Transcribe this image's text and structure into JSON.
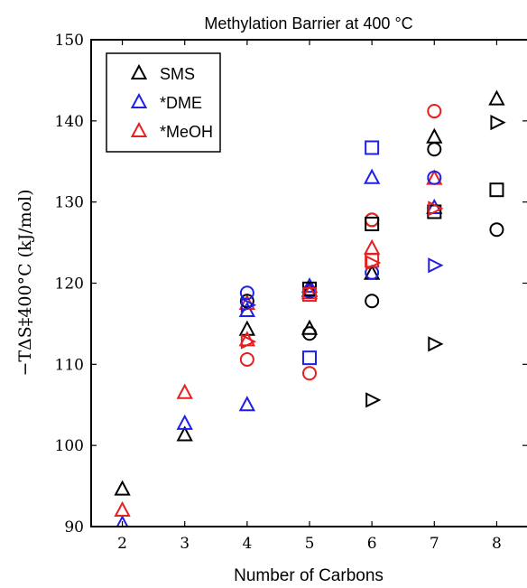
{
  "chart_data": {
    "type": "scatter",
    "title": "Methylation Barrier at 400 °C",
    "xlabel": "Number of Carbons",
    "ylabel": "−TΔS‡400°C (kJ/mol)",
    "xlim": [
      1.5,
      8.5
    ],
    "ylim": [
      90,
      150
    ],
    "xticks": [
      2,
      3,
      4,
      5,
      6,
      7,
      8
    ],
    "yticks": [
      90,
      100,
      110,
      120,
      130,
      140,
      150
    ],
    "grid": false,
    "legend_position": "top-left",
    "legend": [
      "SMS",
      "*DME",
      "*MeOH"
    ],
    "colors": {
      "SMS": "#000000",
      "*DME": "#1f1fe6",
      "*MeOH": "#e61f1f"
    },
    "series": [
      {
        "name": "SMS",
        "marker": "triangle-up",
        "points": [
          [
            2,
            94.6
          ],
          [
            3,
            101.3
          ],
          [
            4,
            114.3
          ],
          [
            5,
            114.4
          ],
          [
            5,
            119.1
          ],
          [
            6,
            121.2
          ],
          [
            7,
            138.0
          ],
          [
            8,
            142.7
          ]
        ]
      },
      {
        "name": "*DME",
        "marker": "triangle-up",
        "points": [
          [
            2,
            90.3
          ],
          [
            3,
            102.7
          ],
          [
            4,
            105.0
          ],
          [
            4,
            116.6
          ],
          [
            5,
            119.6
          ],
          [
            6,
            133.0
          ],
          [
            7,
            129.3
          ]
        ]
      },
      {
        "name": "*MeOH",
        "marker": "triangle-up",
        "points": [
          [
            2,
            92.0
          ],
          [
            3,
            106.5
          ],
          [
            4,
            113.0
          ],
          [
            4,
            117.5
          ],
          [
            5,
            118.8
          ],
          [
            6,
            124.3
          ],
          [
            7,
            132.9
          ]
        ]
      },
      {
        "name": "",
        "color": "#000000",
        "marker": "circle",
        "points": [
          [
            4,
            117.8
          ],
          [
            5,
            113.8
          ],
          [
            6,
            117.8
          ],
          [
            6,
            127.8
          ],
          [
            7,
            136.5
          ],
          [
            8,
            126.6
          ]
        ]
      },
      {
        "name": "",
        "color": "#1f1fe6",
        "marker": "circle",
        "points": [
          [
            4,
            118.8
          ],
          [
            5,
            119.0
          ],
          [
            6,
            121.3
          ],
          [
            7,
            133.0
          ]
        ]
      },
      {
        "name": "",
        "color": "#e61f1f",
        "marker": "circle",
        "points": [
          [
            4,
            110.6
          ],
          [
            5,
            108.9
          ],
          [
            6,
            127.8
          ],
          [
            7,
            141.2
          ]
        ]
      },
      {
        "name": "",
        "color": "#000000",
        "marker": "square",
        "points": [
          [
            5,
            119.3
          ],
          [
            6,
            127.3
          ],
          [
            7,
            128.8
          ],
          [
            8,
            131.5
          ]
        ]
      },
      {
        "name": "",
        "color": "#1f1fe6",
        "marker": "square",
        "points": [
          [
            5,
            110.8
          ],
          [
            6,
            136.7
          ]
        ]
      },
      {
        "name": "",
        "color": "#e61f1f",
        "marker": "square",
        "points": [
          [
            5,
            118.6
          ],
          [
            6,
            122.8
          ]
        ]
      },
      {
        "name": "",
        "color": "#000000",
        "marker": "triangle-right",
        "points": [
          [
            6,
            105.6
          ],
          [
            7,
            112.5
          ],
          [
            8,
            139.8
          ]
        ]
      },
      {
        "name": "",
        "color": "#1f1fe6",
        "marker": "triangle-right",
        "points": [
          [
            4,
            117.3
          ],
          [
            7,
            122.2
          ]
        ]
      },
      {
        "name": "",
        "color": "#e61f1f",
        "marker": "triangle-right",
        "points": [
          [
            4,
            112.8
          ],
          [
            6,
            122.5
          ],
          [
            7,
            129.2
          ]
        ]
      }
    ]
  }
}
